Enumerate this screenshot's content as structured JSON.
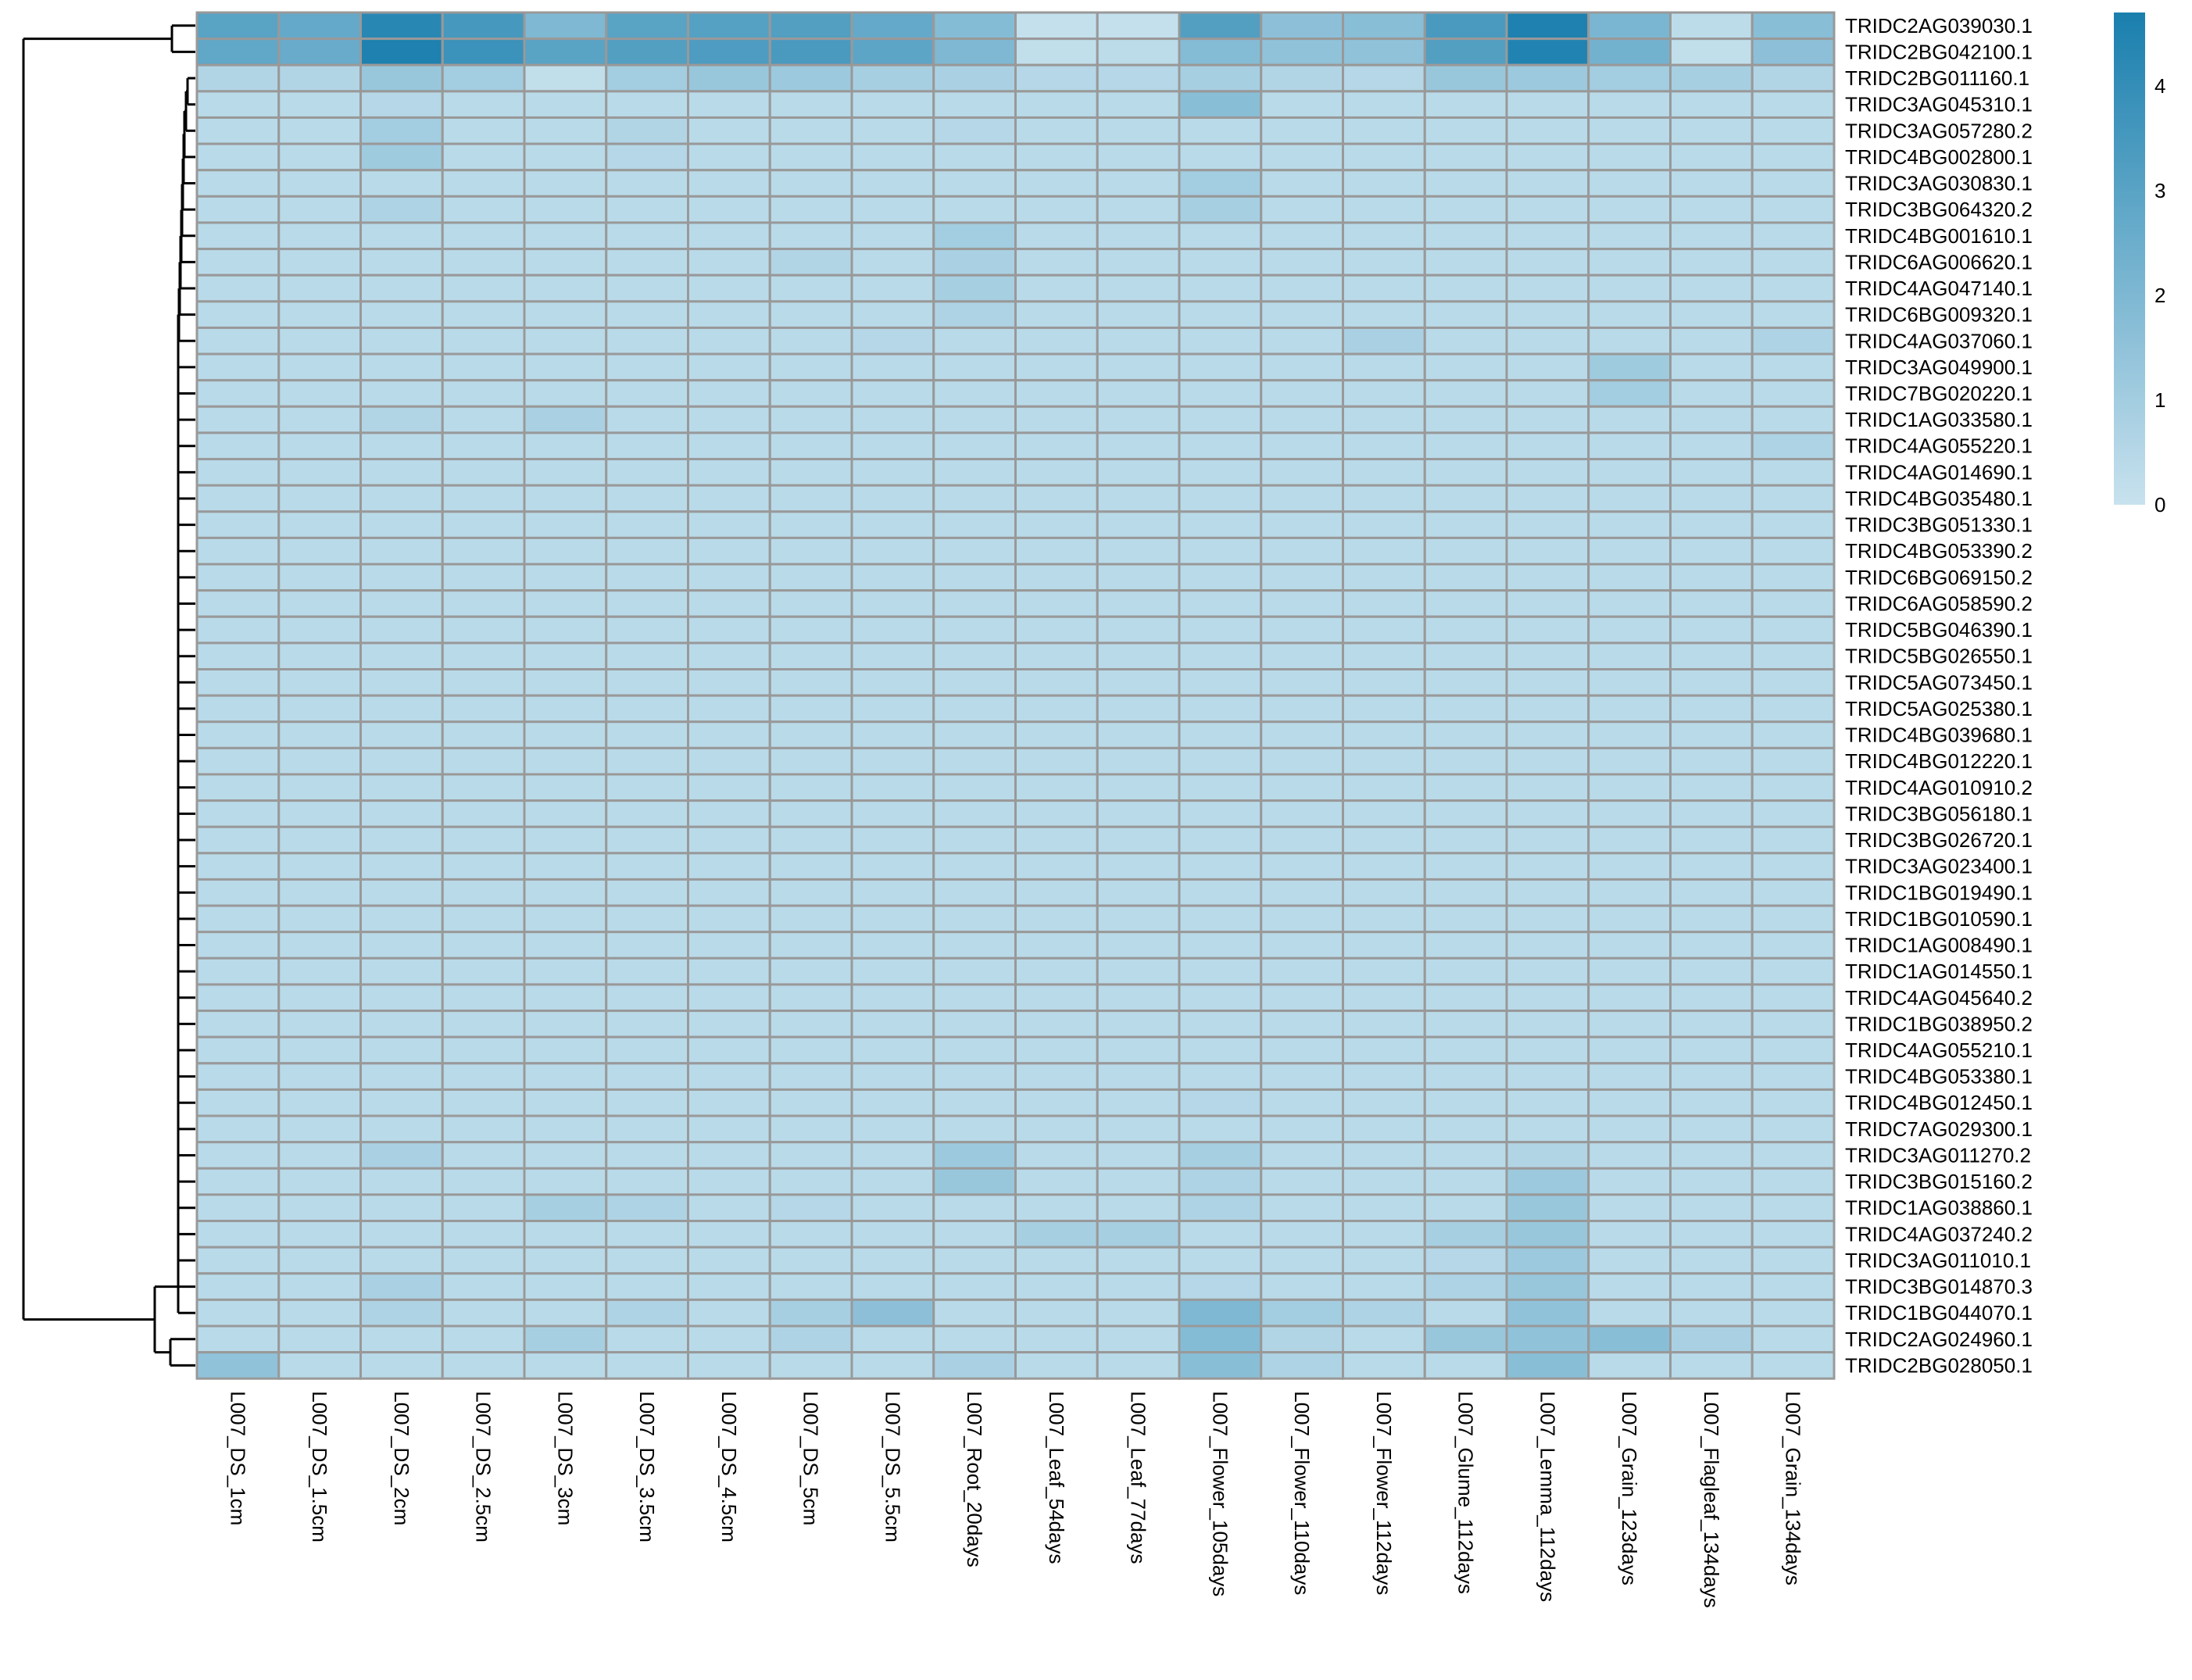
{
  "chart_data": {
    "type": "heatmap",
    "title": "",
    "xlabel": "",
    "ylabel": "",
    "columns": [
      "L007_DS_1cm",
      "L007_DS_1.5cm",
      "L007_DS_2cm",
      "L007_DS_2.5cm",
      "L007_DS_3cm",
      "L007_DS_3.5cm",
      "L007_DS_4.5cm",
      "L007_DS_5cm",
      "L007_DS_5.5cm",
      "L007_Root_20days",
      "L007_Leaf_54days",
      "L007_Leaf_77days",
      "L007_Flower_105days",
      "L007_Flower_110days",
      "L007_Flower_112days",
      "L007_Glume_112days",
      "L007_Lemma_112days",
      "L007_Grain_123days",
      "L007_Flagleaf_134days",
      "L007_Grain_134days"
    ],
    "rows": [
      "TRIDC2AG039030.1",
      "TRIDC2BG042100.1",
      "TRIDC2BG011160.1",
      "TRIDC3AG045310.1",
      "TRIDC3AG057280.2",
      "TRIDC4BG002800.1",
      "TRIDC3AG030830.1",
      "TRIDC3BG064320.2",
      "TRIDC4BG001610.1",
      "TRIDC6AG006620.1",
      "TRIDC4AG047140.1",
      "TRIDC6BG009320.1",
      "TRIDC4AG037060.1",
      "TRIDC3AG049900.1",
      "TRIDC7BG020220.1",
      "TRIDC1AG033580.1",
      "TRIDC4AG055220.1",
      "TRIDC4AG014690.1",
      "TRIDC4BG035480.1",
      "TRIDC3BG051330.1",
      "TRIDC4BG053390.2",
      "TRIDC6BG069150.2",
      "TRIDC6AG058590.2",
      "TRIDC5BG046390.1",
      "TRIDC5BG026550.1",
      "TRIDC5AG073450.1",
      "TRIDC5AG025380.1",
      "TRIDC4BG039680.1",
      "TRIDC4BG012220.1",
      "TRIDC4AG010910.2",
      "TRIDC3BG056180.1",
      "TRIDC3BG026720.1",
      "TRIDC3AG023400.1",
      "TRIDC1BG019490.1",
      "TRIDC1BG010590.1",
      "TRIDC1AG008490.1",
      "TRIDC1AG014550.1",
      "TRIDC4AG045640.2",
      "TRIDC1BG038950.2",
      "TRIDC4AG055210.1",
      "TRIDC4BG053380.1",
      "TRIDC4BG012450.1",
      "TRIDC7AG029300.1",
      "TRIDC3AG011270.2",
      "TRIDC3BG015160.2",
      "TRIDC1AG038860.1",
      "TRIDC4AG037240.2",
      "TRIDC3AG011010.1",
      "TRIDC3BG014870.3",
      "TRIDC1BG044070.1",
      "TRIDC2AG024960.1",
      "TRIDC2BG028050.1"
    ],
    "values": [
      [
        3.0,
        2.7,
        4.3,
        3.5,
        2.0,
        3.0,
        3.1,
        3.2,
        2.7,
        1.8,
        0.1,
        0.1,
        3.2,
        1.6,
        1.7,
        3.4,
        4.6,
        2.1,
        0.3,
        1.7
      ],
      [
        2.8,
        2.6,
        4.6,
        3.8,
        3.0,
        3.2,
        3.3,
        3.4,
        2.9,
        2.0,
        0.2,
        0.3,
        1.8,
        1.5,
        1.5,
        3.2,
        4.5,
        2.3,
        0.2,
        1.6
      ],
      [
        0.6,
        0.6,
        1.3,
        1.0,
        0.2,
        1.0,
        1.3,
        1.2,
        0.9,
        0.8,
        0.5,
        0.5,
        0.9,
        0.6,
        0.5,
        1.3,
        1.2,
        1.0,
        0.9,
        0.6
      ],
      [
        0.4,
        0.4,
        0.5,
        0.4,
        0.4,
        0.4,
        0.4,
        0.4,
        0.4,
        0.4,
        0.4,
        0.4,
        1.7,
        0.4,
        0.4,
        0.4,
        0.4,
        0.4,
        0.4,
        0.4
      ],
      [
        0.4,
        0.4,
        1.0,
        0.4,
        0.4,
        0.6,
        0.4,
        0.4,
        0.4,
        0.5,
        0.4,
        0.4,
        0.4,
        0.4,
        0.4,
        0.4,
        0.4,
        0.4,
        0.4,
        0.4
      ],
      [
        0.4,
        0.4,
        1.1,
        0.4,
        0.4,
        0.5,
        0.4,
        0.4,
        0.4,
        0.4,
        0.4,
        0.4,
        0.4,
        0.4,
        0.4,
        0.4,
        0.4,
        0.4,
        0.4,
        0.4
      ],
      [
        0.4,
        0.4,
        0.4,
        0.4,
        0.4,
        0.4,
        0.4,
        0.4,
        0.4,
        0.4,
        0.4,
        0.4,
        1.0,
        0.4,
        0.4,
        0.4,
        0.4,
        0.4,
        0.4,
        0.4
      ],
      [
        0.4,
        0.4,
        0.7,
        0.4,
        0.4,
        0.4,
        0.4,
        0.4,
        0.4,
        0.4,
        0.4,
        0.4,
        0.9,
        0.4,
        0.4,
        0.4,
        0.4,
        0.4,
        0.4,
        0.4
      ],
      [
        0.4,
        0.4,
        0.4,
        0.4,
        0.4,
        0.4,
        0.4,
        0.4,
        0.4,
        1.0,
        0.4,
        0.4,
        0.4,
        0.4,
        0.4,
        0.4,
        0.4,
        0.4,
        0.4,
        0.4
      ],
      [
        0.4,
        0.4,
        0.4,
        0.4,
        0.4,
        0.4,
        0.4,
        0.6,
        0.4,
        0.8,
        0.4,
        0.4,
        0.4,
        0.4,
        0.4,
        0.4,
        0.4,
        0.4,
        0.4,
        0.4
      ],
      [
        0.4,
        0.4,
        0.4,
        0.4,
        0.4,
        0.4,
        0.4,
        0.4,
        0.4,
        0.9,
        0.4,
        0.4,
        0.4,
        0.4,
        0.4,
        0.4,
        0.4,
        0.4,
        0.4,
        0.4
      ],
      [
        0.4,
        0.4,
        0.4,
        0.4,
        0.4,
        0.4,
        0.4,
        0.4,
        0.4,
        0.7,
        0.4,
        0.4,
        0.4,
        0.4,
        0.4,
        0.4,
        0.4,
        0.4,
        0.4,
        0.4
      ],
      [
        0.4,
        0.4,
        0.4,
        0.4,
        0.4,
        0.4,
        0.4,
        0.4,
        0.5,
        0.4,
        0.4,
        0.4,
        0.4,
        0.4,
        0.8,
        0.4,
        0.4,
        0.4,
        0.4,
        0.7
      ],
      [
        0.4,
        0.4,
        0.4,
        0.4,
        0.4,
        0.4,
        0.4,
        0.4,
        0.4,
        0.4,
        0.4,
        0.4,
        0.4,
        0.4,
        0.4,
        0.4,
        0.4,
        1.1,
        0.4,
        0.4
      ],
      [
        0.4,
        0.4,
        0.4,
        0.4,
        0.4,
        0.4,
        0.4,
        0.4,
        0.4,
        0.4,
        0.4,
        0.4,
        0.4,
        0.4,
        0.4,
        0.4,
        0.4,
        1.0,
        0.4,
        0.4
      ],
      [
        0.4,
        0.4,
        0.6,
        0.4,
        0.8,
        0.4,
        0.4,
        0.4,
        0.4,
        0.4,
        0.4,
        0.4,
        0.4,
        0.4,
        0.4,
        0.4,
        0.4,
        0.4,
        0.4,
        0.4
      ],
      [
        0.4,
        0.4,
        0.4,
        0.4,
        0.4,
        0.4,
        0.4,
        0.4,
        0.4,
        0.4,
        0.4,
        0.4,
        0.4,
        0.4,
        0.4,
        0.4,
        0.4,
        0.4,
        0.4,
        0.7
      ],
      [
        0.4,
        0.4,
        0.4,
        0.4,
        0.4,
        0.4,
        0.4,
        0.4,
        0.4,
        0.4,
        0.4,
        0.4,
        0.4,
        0.4,
        0.4,
        0.4,
        0.4,
        0.4,
        0.4,
        0.4
      ],
      [
        0.4,
        0.4,
        0.4,
        0.4,
        0.4,
        0.4,
        0.4,
        0.4,
        0.4,
        0.4,
        0.4,
        0.4,
        0.4,
        0.4,
        0.4,
        0.4,
        0.4,
        0.4,
        0.4,
        0.4
      ],
      [
        0.4,
        0.4,
        0.4,
        0.4,
        0.4,
        0.4,
        0.4,
        0.4,
        0.4,
        0.4,
        0.4,
        0.4,
        0.4,
        0.4,
        0.4,
        0.4,
        0.4,
        0.4,
        0.4,
        0.4
      ],
      [
        0.4,
        0.4,
        0.4,
        0.4,
        0.4,
        0.4,
        0.4,
        0.4,
        0.4,
        0.4,
        0.4,
        0.4,
        0.4,
        0.4,
        0.4,
        0.4,
        0.4,
        0.4,
        0.4,
        0.4
      ],
      [
        0.4,
        0.4,
        0.4,
        0.4,
        0.4,
        0.4,
        0.4,
        0.4,
        0.4,
        0.4,
        0.4,
        0.4,
        0.4,
        0.4,
        0.4,
        0.4,
        0.4,
        0.4,
        0.4,
        0.4
      ],
      [
        0.4,
        0.4,
        0.4,
        0.4,
        0.4,
        0.4,
        0.4,
        0.4,
        0.4,
        0.4,
        0.4,
        0.4,
        0.4,
        0.4,
        0.4,
        0.4,
        0.4,
        0.4,
        0.4,
        0.4
      ],
      [
        0.4,
        0.4,
        0.4,
        0.4,
        0.4,
        0.4,
        0.4,
        0.4,
        0.4,
        0.4,
        0.4,
        0.4,
        0.4,
        0.4,
        0.4,
        0.4,
        0.4,
        0.4,
        0.4,
        0.4
      ],
      [
        0.4,
        0.4,
        0.4,
        0.4,
        0.4,
        0.4,
        0.4,
        0.4,
        0.4,
        0.4,
        0.4,
        0.4,
        0.4,
        0.4,
        0.4,
        0.4,
        0.4,
        0.4,
        0.4,
        0.4
      ],
      [
        0.4,
        0.4,
        0.4,
        0.4,
        0.4,
        0.4,
        0.4,
        0.4,
        0.4,
        0.4,
        0.4,
        0.4,
        0.4,
        0.4,
        0.4,
        0.4,
        0.4,
        0.4,
        0.4,
        0.4
      ],
      [
        0.4,
        0.4,
        0.4,
        0.4,
        0.4,
        0.4,
        0.4,
        0.4,
        0.4,
        0.4,
        0.4,
        0.4,
        0.4,
        0.4,
        0.4,
        0.4,
        0.4,
        0.4,
        0.4,
        0.4
      ],
      [
        0.4,
        0.4,
        0.4,
        0.4,
        0.4,
        0.4,
        0.4,
        0.4,
        0.4,
        0.4,
        0.4,
        0.4,
        0.4,
        0.4,
        0.4,
        0.4,
        0.4,
        0.4,
        0.4,
        0.4
      ],
      [
        0.4,
        0.4,
        0.4,
        0.4,
        0.4,
        0.4,
        0.4,
        0.4,
        0.4,
        0.4,
        0.4,
        0.4,
        0.4,
        0.4,
        0.4,
        0.4,
        0.4,
        0.4,
        0.4,
        0.4
      ],
      [
        0.4,
        0.4,
        0.4,
        0.4,
        0.4,
        0.4,
        0.4,
        0.4,
        0.4,
        0.4,
        0.4,
        0.4,
        0.4,
        0.4,
        0.4,
        0.4,
        0.4,
        0.4,
        0.4,
        0.4
      ],
      [
        0.4,
        0.4,
        0.4,
        0.4,
        0.4,
        0.4,
        0.4,
        0.4,
        0.4,
        0.4,
        0.4,
        0.4,
        0.4,
        0.4,
        0.4,
        0.4,
        0.4,
        0.4,
        0.4,
        0.4
      ],
      [
        0.4,
        0.4,
        0.4,
        0.4,
        0.4,
        0.4,
        0.4,
        0.4,
        0.4,
        0.4,
        0.4,
        0.4,
        0.4,
        0.4,
        0.4,
        0.4,
        0.4,
        0.4,
        0.4,
        0.4
      ],
      [
        0.4,
        0.4,
        0.4,
        0.4,
        0.4,
        0.4,
        0.4,
        0.4,
        0.4,
        0.4,
        0.4,
        0.4,
        0.4,
        0.4,
        0.4,
        0.4,
        0.4,
        0.4,
        0.4,
        0.4
      ],
      [
        0.4,
        0.4,
        0.4,
        0.4,
        0.4,
        0.4,
        0.4,
        0.4,
        0.4,
        0.4,
        0.4,
        0.4,
        0.4,
        0.4,
        0.4,
        0.4,
        0.4,
        0.4,
        0.4,
        0.4
      ],
      [
        0.4,
        0.4,
        0.4,
        0.4,
        0.4,
        0.4,
        0.4,
        0.4,
        0.4,
        0.4,
        0.4,
        0.4,
        0.4,
        0.4,
        0.4,
        0.4,
        0.4,
        0.4,
        0.4,
        0.4
      ],
      [
        0.4,
        0.4,
        0.4,
        0.4,
        0.4,
        0.4,
        0.4,
        0.4,
        0.4,
        0.4,
        0.4,
        0.4,
        0.4,
        0.4,
        0.4,
        0.4,
        0.4,
        0.4,
        0.4,
        0.4
      ],
      [
        0.4,
        0.4,
        0.4,
        0.4,
        0.4,
        0.4,
        0.4,
        0.4,
        0.4,
        0.4,
        0.4,
        0.4,
        0.4,
        0.4,
        0.4,
        0.4,
        0.4,
        0.4,
        0.4,
        0.4
      ],
      [
        0.4,
        0.4,
        0.4,
        0.4,
        0.4,
        0.4,
        0.4,
        0.4,
        0.4,
        0.4,
        0.4,
        0.4,
        0.4,
        0.4,
        0.4,
        0.4,
        0.4,
        0.4,
        0.4,
        0.4
      ],
      [
        0.4,
        0.4,
        0.4,
        0.4,
        0.4,
        0.4,
        0.4,
        0.4,
        0.4,
        0.4,
        0.4,
        0.4,
        0.4,
        0.4,
        0.4,
        0.4,
        0.4,
        0.4,
        0.4,
        0.4
      ],
      [
        0.4,
        0.4,
        0.4,
        0.4,
        0.4,
        0.4,
        0.4,
        0.4,
        0.4,
        0.4,
        0.4,
        0.4,
        0.4,
        0.4,
        0.4,
        0.4,
        0.4,
        0.4,
        0.4,
        0.4
      ],
      [
        0.4,
        0.4,
        0.4,
        0.4,
        0.4,
        0.4,
        0.4,
        0.4,
        0.4,
        0.4,
        0.4,
        0.4,
        0.4,
        0.4,
        0.4,
        0.4,
        0.4,
        0.4,
        0.4,
        0.4
      ],
      [
        0.4,
        0.4,
        0.4,
        0.4,
        0.4,
        0.4,
        0.4,
        0.4,
        0.4,
        0.4,
        0.4,
        0.4,
        0.5,
        0.4,
        0.4,
        0.4,
        0.4,
        0.4,
        0.4,
        0.4
      ],
      [
        0.4,
        0.4,
        0.4,
        0.4,
        0.4,
        0.4,
        0.4,
        0.4,
        0.4,
        0.4,
        0.4,
        0.4,
        0.4,
        0.4,
        0.4,
        0.4,
        0.4,
        0.4,
        0.4,
        0.4
      ],
      [
        0.4,
        0.4,
        0.8,
        0.4,
        0.4,
        0.4,
        0.4,
        0.4,
        0.4,
        1.2,
        0.4,
        0.4,
        0.9,
        0.4,
        0.4,
        0.4,
        0.6,
        0.4,
        0.4,
        0.4
      ],
      [
        0.4,
        0.4,
        0.4,
        0.4,
        0.4,
        0.4,
        0.4,
        0.4,
        0.4,
        1.3,
        0.4,
        0.4,
        0.7,
        0.4,
        0.4,
        0.4,
        1.2,
        0.4,
        0.4,
        0.4
      ],
      [
        0.4,
        0.4,
        0.4,
        0.4,
        0.9,
        0.7,
        0.4,
        0.5,
        0.4,
        0.4,
        0.4,
        0.4,
        0.7,
        0.4,
        0.4,
        0.4,
        1.3,
        0.4,
        0.4,
        0.4
      ],
      [
        0.4,
        0.4,
        0.4,
        0.4,
        0.4,
        0.4,
        0.4,
        0.4,
        0.4,
        0.4,
        0.9,
        0.9,
        0.4,
        0.4,
        0.4,
        0.9,
        1.3,
        0.4,
        0.4,
        0.4
      ],
      [
        0.4,
        0.4,
        0.4,
        0.4,
        0.4,
        0.4,
        0.4,
        0.4,
        0.4,
        0.4,
        0.4,
        0.4,
        0.4,
        0.4,
        0.4,
        0.5,
        1.2,
        0.4,
        0.4,
        0.4
      ],
      [
        0.4,
        0.4,
        0.8,
        0.4,
        0.4,
        0.4,
        0.4,
        0.4,
        0.4,
        0.4,
        0.4,
        0.4,
        0.5,
        0.4,
        0.4,
        0.7,
        1.3,
        0.4,
        0.4,
        0.4
      ],
      [
        0.4,
        0.4,
        0.7,
        0.4,
        0.4,
        0.7,
        0.4,
        0.9,
        1.6,
        0.4,
        0.4,
        0.4,
        2.0,
        1.0,
        0.7,
        0.4,
        1.5,
        0.4,
        0.4,
        0.4
      ],
      [
        0.4,
        0.4,
        0.4,
        0.4,
        0.9,
        0.4,
        0.4,
        0.7,
        0.4,
        0.4,
        0.4,
        0.4,
        1.8,
        0.6,
        0.4,
        1.3,
        1.5,
        1.7,
        0.8,
        0.4
      ],
      [
        1.5,
        0.4,
        0.4,
        0.4,
        0.4,
        0.4,
        0.4,
        0.4,
        0.4,
        0.8,
        0.4,
        0.4,
        1.7,
        0.7,
        0.4,
        0.4,
        1.7,
        0.4,
        0.4,
        0.4
      ]
    ],
    "legend": {
      "position": "right",
      "ticks": [
        0,
        1,
        2,
        3,
        4
      ],
      "min": 0,
      "max": 4.7
    },
    "colors": {
      "low": "#c8e2ee",
      "high": "#1a7fae",
      "grid": "#999999"
    }
  }
}
